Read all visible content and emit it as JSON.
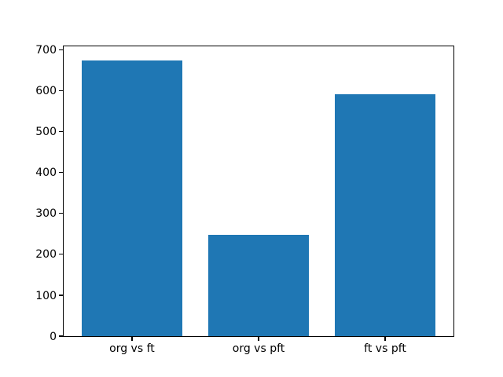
{
  "chart_data": {
    "type": "bar",
    "categories": [
      "org vs ft",
      "org vs pft",
      "ft vs pft"
    ],
    "x": [
      0,
      1,
      2
    ],
    "values": [
      675,
      247,
      592
    ],
    "series_color": "#1f77b4",
    "title": "",
    "xlabel": "",
    "ylabel": "",
    "yticks": [
      0,
      100,
      200,
      300,
      400,
      500,
      600,
      700
    ],
    "ylim": [
      0,
      708.75
    ],
    "xlim": [
      -0.54,
      2.54
    ],
    "bar_width": 0.8,
    "grid": false,
    "legend": null,
    "background_color": "#ffffff",
    "axis_color": "#000000"
  }
}
